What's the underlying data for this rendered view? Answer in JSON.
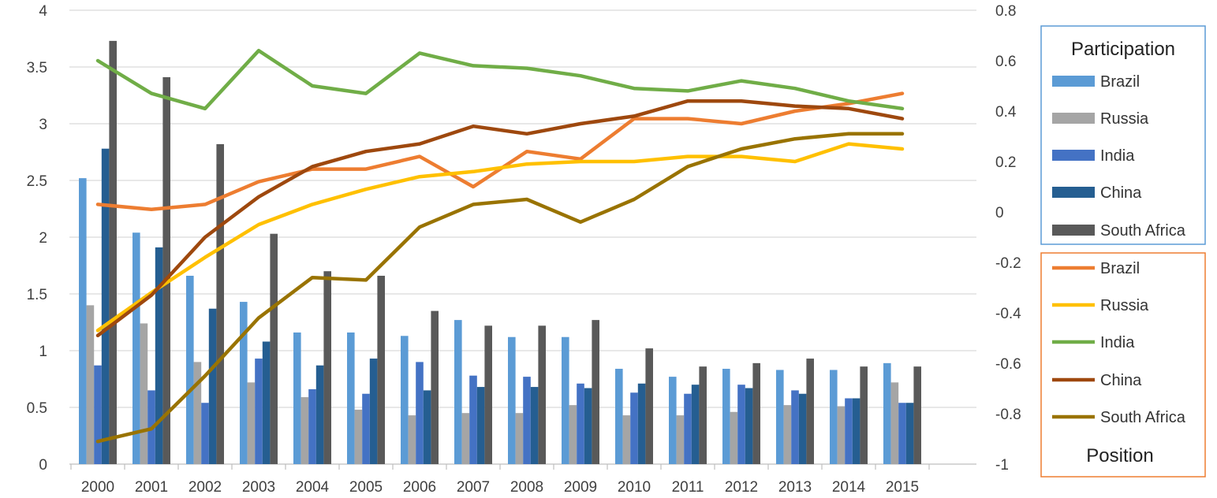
{
  "chart_data": {
    "type": "bar+line",
    "categories": [
      "2000",
      "2001",
      "2002",
      "2003",
      "2004",
      "2005",
      "2006",
      "2007",
      "2008",
      "2009",
      "2010",
      "2011",
      "2012",
      "2013",
      "2014",
      "2015"
    ],
    "left_axis": {
      "ylim": [
        0,
        4
      ],
      "ticks": [
        "0",
        "0.5",
        "1",
        "1.5",
        "2",
        "2.5",
        "3",
        "3.5",
        "4"
      ]
    },
    "right_axis": {
      "ylim": [
        -1,
        0.8
      ],
      "ticks": [
        "-1",
        "-0.8",
        "-0.6",
        "-0.4",
        "-0.2",
        "0",
        "0.2",
        "0.4",
        "0.6",
        "0.8"
      ]
    },
    "grid": true,
    "bar_series": [
      {
        "name": "Brazil",
        "color": "#5B9BD5",
        "values": [
          2.52,
          2.04,
          1.66,
          1.43,
          1.16,
          1.16,
          1.13,
          1.27,
          1.12,
          1.12,
          0.84,
          0.77,
          0.84,
          0.83,
          0.83,
          0.89
        ]
      },
      {
        "name": "Russia",
        "color": "#A5A5A5",
        "values": [
          1.4,
          1.24,
          0.9,
          0.72,
          0.59,
          0.48,
          0.43,
          0.45,
          0.45,
          0.52,
          0.43,
          0.43,
          0.46,
          0.52,
          0.51,
          0.72
        ]
      },
      {
        "name": "India",
        "color": "#4472C4",
        "values": [
          0.87,
          0.65,
          0.54,
          0.93,
          0.66,
          0.62,
          0.9,
          0.78,
          0.77,
          0.71,
          0.63,
          0.62,
          0.7,
          0.65,
          0.58,
          0.54
        ]
      },
      {
        "name": "China",
        "color": "#255E91",
        "values": [
          2.78,
          1.91,
          1.37,
          1.08,
          0.87,
          0.93,
          0.65,
          0.68,
          0.68,
          0.67,
          0.71,
          0.7,
          0.67,
          0.62,
          0.58,
          0.54
        ]
      },
      {
        "name": "South Africa",
        "color": "#595959",
        "values": [
          3.73,
          3.41,
          2.82,
          2.03,
          1.7,
          1.66,
          1.35,
          1.22,
          1.22,
          1.27,
          1.02,
          0.86,
          0.89,
          0.93,
          0.86,
          0.86
        ]
      }
    ],
    "line_series": [
      {
        "name": "Brazil",
        "color": "#ED7D31",
        "values": [
          0.03,
          0.01,
          0.03,
          0.12,
          0.17,
          0.17,
          0.22,
          0.1,
          0.24,
          0.21,
          0.37,
          0.37,
          0.35,
          0.4,
          0.43,
          0.47
        ]
      },
      {
        "name": "Russia",
        "color": "#FFC000",
        "values": [
          -0.47,
          -0.32,
          -0.18,
          -0.05,
          0.03,
          0.09,
          0.14,
          0.16,
          0.19,
          0.2,
          0.2,
          0.22,
          0.22,
          0.2,
          0.27,
          0.25
        ]
      },
      {
        "name": "India",
        "color": "#70AD47",
        "values": [
          0.6,
          0.47,
          0.41,
          0.64,
          0.5,
          0.47,
          0.63,
          0.58,
          0.57,
          0.54,
          0.49,
          0.48,
          0.52,
          0.49,
          0.44,
          0.41
        ]
      },
      {
        "name": "China",
        "color": "#9E480E",
        "values": [
          -0.49,
          -0.33,
          -0.1,
          0.06,
          0.18,
          0.24,
          0.27,
          0.34,
          0.31,
          0.35,
          0.38,
          0.44,
          0.44,
          0.42,
          0.41,
          0.37
        ]
      },
      {
        "name": "South Africa",
        "color": "#997300",
        "values": [
          -0.91,
          -0.86,
          -0.65,
          -0.42,
          -0.26,
          -0.27,
          -0.06,
          0.03,
          0.05,
          -0.04,
          0.05,
          0.18,
          0.25,
          0.29,
          0.31,
          0.31
        ]
      }
    ],
    "legend": {
      "placement": "right",
      "bars_title": "Participation",
      "bars_border_color": "#5B9BD5",
      "lines_title": "Position",
      "lines_border_color": "#ED7D31"
    }
  }
}
